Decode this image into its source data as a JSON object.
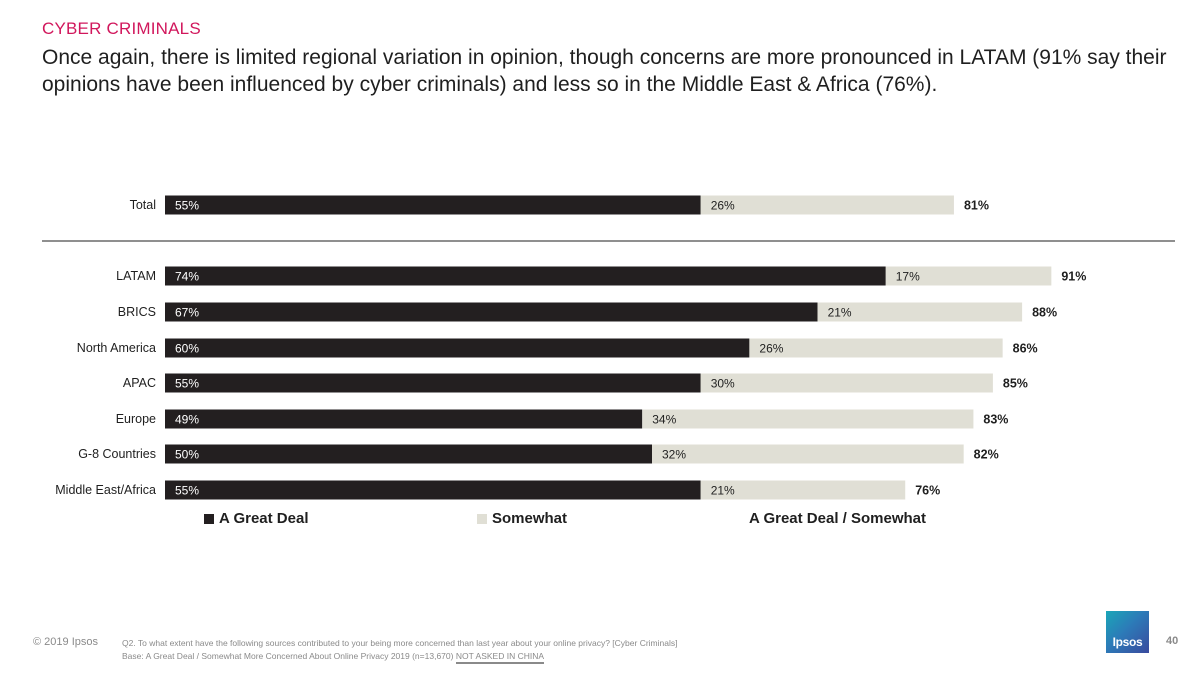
{
  "header": {
    "section_label": "CYBER CRIMINALS",
    "headline": "Once again, there is limited regional variation in opinion, though concerns are more pronounced in LATAM (91% say their opinions have been influenced by cyber criminals) and less so in the Middle East & Africa (76%)."
  },
  "chart_data": {
    "type": "bar",
    "orientation": "horizontal",
    "stacked": true,
    "categories": [
      "Total",
      "LATAM",
      "BRICS",
      "North America",
      "APAC",
      "Europe",
      "G-8 Countries",
      "Middle East/Africa"
    ],
    "series": [
      {
        "name": "A Great Deal",
        "values": [
          55,
          74,
          67,
          60,
          55,
          49,
          50,
          55
        ],
        "color": "#231f20"
      },
      {
        "name": "Somewhat",
        "values": [
          26,
          17,
          21,
          26,
          30,
          34,
          32,
          21
        ],
        "color": "#e0dfd5"
      }
    ],
    "totals_label": "A Great Deal / Somewhat",
    "totals": [
      81,
      91,
      88,
      86,
      85,
      83,
      82,
      76
    ],
    "value_suffix": "%",
    "separator_after": "Total",
    "legend_position": "bottom"
  },
  "footer": {
    "copyright": "© 2019 Ipsos",
    "question": "Q2. To what extent have the following sources contributed to your being more concerned than last year about your online privacy? [Cyber Criminals]",
    "base": "Base: A Great Deal / Somewhat More Concerned About Online Privacy 2019 (n=13,670)",
    "not_asked": "NOT ASKED IN CHINA",
    "logo": "Ipsos",
    "page_number": "40"
  }
}
